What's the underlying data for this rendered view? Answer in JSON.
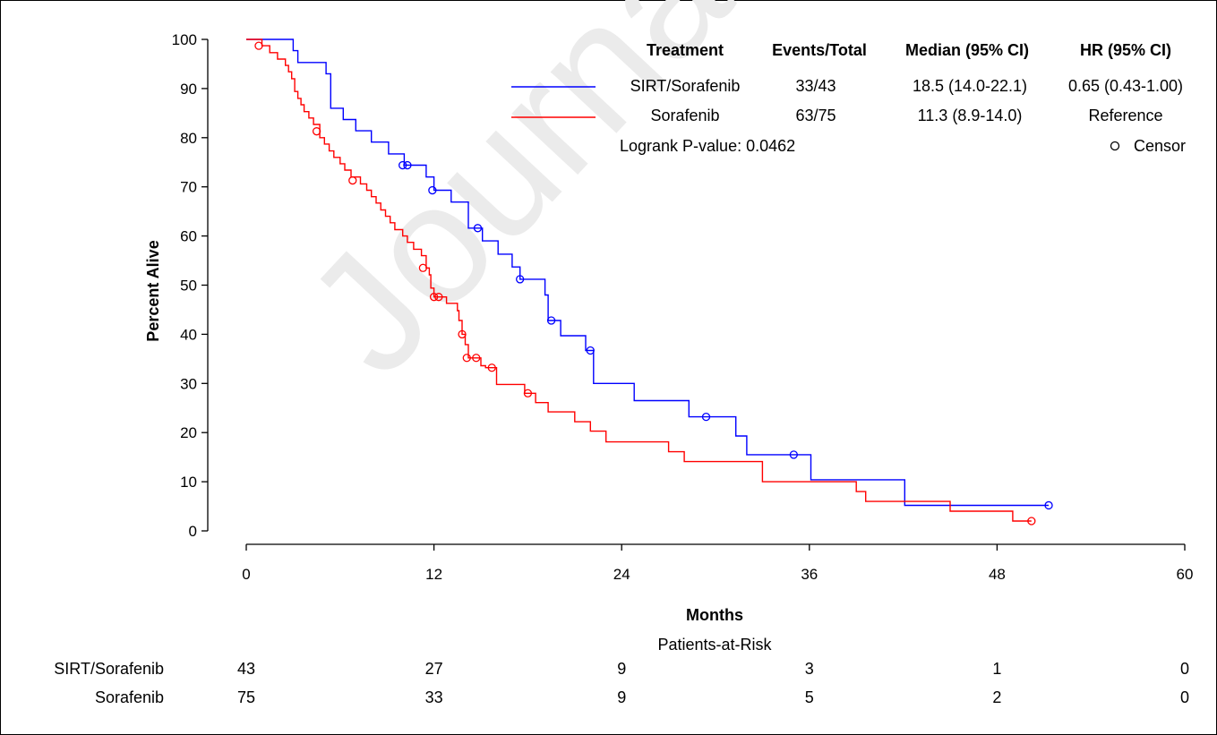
{
  "watermark": "Journal Pre-proof",
  "chart_data": {
    "type": "line",
    "subtype": "kaplan-meier",
    "xlabel": "Months",
    "ylabel": "Percent Alive",
    "xlim": [
      0,
      60
    ],
    "ylim": [
      0,
      100
    ],
    "xticks": [
      0,
      12,
      24,
      36,
      48,
      60
    ],
    "yticks": [
      0,
      10,
      20,
      30,
      40,
      50,
      60,
      70,
      80,
      90,
      100
    ],
    "grid": false,
    "legend": {
      "headers": [
        "Treatment",
        "Events/Total",
        "Median (95% CI)",
        "HR (95% CI)"
      ],
      "rows": [
        {
          "treatment": "SIRT/Sorafenib",
          "events_total": "33/43",
          "median_ci": "18.5 (14.0-22.1)",
          "hr_ci": "0.65 (0.43-1.00)",
          "color": "#0000ff"
        },
        {
          "treatment": "Sorafenib",
          "events_total": "63/75",
          "median_ci": "11.3 (8.9-14.0)",
          "hr_ci": "Reference",
          "color": "#ff0000"
        }
      ],
      "pvalue_text": "Logrank P-value: 0.0462",
      "censor_label": "Censor"
    },
    "series": [
      {
        "name": "SIRT/Sorafenib",
        "color": "#0000ff",
        "steps": [
          [
            0,
            100
          ],
          [
            3.0,
            97.7
          ],
          [
            3.3,
            95.3
          ],
          [
            5.1,
            93.0
          ],
          [
            5.4,
            86.0
          ],
          [
            6.2,
            83.7
          ],
          [
            7.0,
            81.4
          ],
          [
            8.0,
            79.1
          ],
          [
            9.1,
            76.7
          ],
          [
            10.1,
            74.4
          ],
          [
            11.5,
            72.0
          ],
          [
            12.0,
            69.3
          ],
          [
            13.1,
            66.9
          ],
          [
            14.2,
            61.6
          ],
          [
            15.1,
            59.0
          ],
          [
            16.1,
            56.3
          ],
          [
            17.0,
            53.7
          ],
          [
            17.5,
            51.2
          ],
          [
            19.1,
            48.0
          ],
          [
            19.3,
            42.8
          ],
          [
            20.1,
            39.7
          ],
          [
            21.7,
            36.7
          ],
          [
            22.2,
            30.0
          ],
          [
            24.8,
            26.5
          ],
          [
            28.3,
            23.2
          ],
          [
            31.3,
            19.3
          ],
          [
            32.0,
            15.5
          ],
          [
            36.1,
            10.4
          ],
          [
            42.1,
            5.2
          ]
        ],
        "end_x": 51.3,
        "censored": [
          [
            10.0,
            74.4
          ],
          [
            10.3,
            74.4
          ],
          [
            11.9,
            69.3
          ],
          [
            14.8,
            61.6
          ],
          [
            17.5,
            51.2
          ],
          [
            19.5,
            42.8
          ],
          [
            22.0,
            36.7
          ],
          [
            29.4,
            23.2
          ],
          [
            35.0,
            15.5
          ],
          [
            51.3,
            5.2
          ]
        ]
      },
      {
        "name": "Sorafenib",
        "color": "#ff0000",
        "steps": [
          [
            0,
            100
          ],
          [
            1.0,
            98.7
          ],
          [
            1.5,
            97.3
          ],
          [
            2.0,
            96.0
          ],
          [
            2.5,
            94.7
          ],
          [
            2.7,
            93.4
          ],
          [
            2.9,
            92.0
          ],
          [
            3.1,
            89.4
          ],
          [
            3.3,
            88.0
          ],
          [
            3.5,
            86.7
          ],
          [
            3.7,
            85.3
          ],
          [
            4.0,
            84.0
          ],
          [
            4.3,
            82.7
          ],
          [
            4.7,
            80.0
          ],
          [
            5.0,
            78.7
          ],
          [
            5.3,
            77.3
          ],
          [
            5.6,
            76.0
          ],
          [
            6.0,
            74.7
          ],
          [
            6.3,
            73.4
          ],
          [
            6.7,
            72.0
          ],
          [
            7.3,
            70.6
          ],
          [
            7.7,
            69.3
          ],
          [
            8.0,
            68.0
          ],
          [
            8.3,
            66.7
          ],
          [
            8.6,
            65.3
          ],
          [
            8.9,
            64.0
          ],
          [
            9.2,
            62.7
          ],
          [
            9.5,
            61.3
          ],
          [
            10.0,
            60.0
          ],
          [
            10.3,
            58.7
          ],
          [
            10.7,
            57.3
          ],
          [
            11.2,
            56.0
          ],
          [
            11.5,
            53.5
          ],
          [
            11.7,
            52.1
          ],
          [
            11.8,
            49.4
          ],
          [
            12.0,
            47.6
          ],
          [
            12.8,
            46.3
          ],
          [
            13.5,
            44.8
          ],
          [
            13.6,
            42.8
          ],
          [
            13.8,
            40.0
          ],
          [
            14.0,
            37.9
          ],
          [
            14.2,
            35.2
          ],
          [
            15.0,
            33.6
          ],
          [
            15.3,
            33.2
          ],
          [
            16.0,
            29.8
          ],
          [
            17.8,
            28.0
          ],
          [
            18.5,
            26.1
          ],
          [
            19.3,
            24.2
          ],
          [
            21.0,
            22.2
          ],
          [
            22.0,
            20.3
          ],
          [
            23.0,
            18.1
          ],
          [
            27.0,
            16.1
          ],
          [
            28.0,
            14.1
          ],
          [
            33.0,
            10.0
          ],
          [
            39.0,
            8.0
          ],
          [
            39.6,
            6.0
          ],
          [
            45.0,
            4.0
          ],
          [
            49.0,
            2.0
          ]
        ],
        "end_x": 50.2,
        "censored": [
          [
            0.8,
            98.7
          ],
          [
            4.5,
            81.3
          ],
          [
            6.8,
            71.3
          ],
          [
            11.3,
            53.5
          ],
          [
            12.0,
            47.6
          ],
          [
            12.3,
            47.6
          ],
          [
            13.8,
            40.0
          ],
          [
            14.1,
            35.2
          ],
          [
            14.7,
            35.2
          ],
          [
            15.7,
            33.2
          ],
          [
            18.0,
            28.0
          ],
          [
            50.2,
            2.0
          ]
        ]
      }
    ],
    "at_risk": {
      "title": "Patients-at-Risk",
      "times": [
        0,
        12,
        24,
        36,
        48,
        60
      ],
      "rows": [
        {
          "label": "SIRT/Sorafenib",
          "counts": [
            "43",
            "27",
            "9",
            "3",
            "1",
            "0"
          ]
        },
        {
          "label": "Sorafenib",
          "counts": [
            "75",
            "33",
            "9",
            "5",
            "2",
            "0"
          ]
        }
      ]
    }
  }
}
